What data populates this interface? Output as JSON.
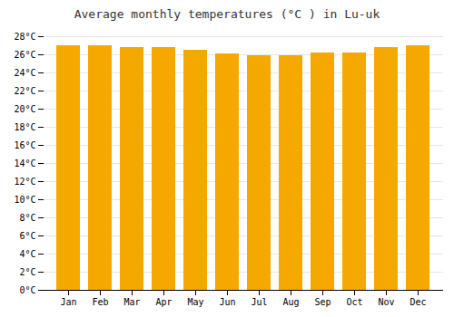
{
  "chart_data": {
    "type": "bar",
    "title": "Average monthly temperatures (°C ) in Lu-uk",
    "categories": [
      "Jan",
      "Feb",
      "Mar",
      "Apr",
      "May",
      "Jun",
      "Jul",
      "Aug",
      "Sep",
      "Oct",
      "Nov",
      "Dec"
    ],
    "values": [
      27.0,
      27.0,
      26.8,
      26.8,
      26.5,
      26.1,
      25.9,
      25.9,
      26.2,
      26.2,
      26.8,
      27.0
    ],
    "color": "#F5A800",
    "ylim": [
      0,
      28
    ],
    "yticks": [
      {
        "value": 0,
        "label": "0°C"
      },
      {
        "value": 2,
        "label": "2°C"
      },
      {
        "value": 4,
        "label": "4°C"
      },
      {
        "value": 6,
        "label": "6°C"
      },
      {
        "value": 8,
        "label": "8°C"
      },
      {
        "value": 10,
        "label": "10°C"
      },
      {
        "value": 12,
        "label": "12°C"
      },
      {
        "value": 14,
        "label": "14°C"
      },
      {
        "value": 16,
        "label": "16°C"
      },
      {
        "value": 18,
        "label": "18°C"
      },
      {
        "value": 20,
        "label": "20°C"
      },
      {
        "value": 22,
        "label": "22°C"
      },
      {
        "value": 24,
        "label": "24°C"
      },
      {
        "value": 26,
        "label": "26°C"
      },
      {
        "value": 28,
        "label": "28°C"
      }
    ],
    "grid": true
  }
}
